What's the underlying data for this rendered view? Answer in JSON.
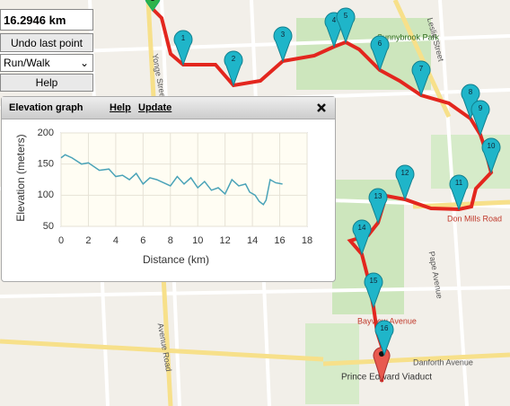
{
  "controls": {
    "distance": "16.2946 km",
    "undo": "Undo last point",
    "mode": "Run/Walk",
    "help": "Help"
  },
  "map": {
    "labels": [
      "Yonge Street",
      "Leslie Street",
      "Sunnybrook Park",
      "Don Mills Road",
      "Bayview Avenue",
      "Pape Avenue",
      "Danforth Avenue",
      "Prince Edward Viaduct",
      "Avenue Road"
    ],
    "markers": [
      "1",
      "2",
      "3",
      "4",
      "5",
      "6",
      "7",
      "8",
      "9",
      "10",
      "11",
      "12",
      "13",
      "14",
      "15",
      "16"
    ]
  },
  "panel": {
    "title": "Elevation graph",
    "help": "Help",
    "update": "Update"
  },
  "chart_data": {
    "type": "line",
    "xlabel": "Distance (km)",
    "ylabel": "Elevation (meters)",
    "color": "#4aa3b8",
    "x": [
      0,
      0.3,
      0.8,
      1.5,
      2,
      2.8,
      3.5,
      4,
      4.5,
      5,
      5.5,
      6,
      6.5,
      7,
      7.5,
      8,
      8.5,
      9,
      9.5,
      10,
      10.5,
      11,
      11.5,
      12,
      12.5,
      13,
      13.5,
      13.8,
      14.2,
      14.5,
      14.8,
      15,
      15.3,
      15.7,
      16.2
    ],
    "values": [
      160,
      165,
      160,
      150,
      152,
      140,
      142,
      130,
      132,
      125,
      135,
      118,
      128,
      125,
      120,
      115,
      130,
      118,
      128,
      112,
      122,
      108,
      112,
      102,
      125,
      115,
      118,
      105,
      100,
      90,
      85,
      92,
      125,
      120,
      118
    ],
    "xlim": [
      0,
      18
    ],
    "xticks": [
      0,
      2,
      4,
      6,
      8,
      10,
      12,
      14,
      16,
      18
    ],
    "ylim": [
      50,
      200
    ],
    "yticks": [
      50,
      100,
      150,
      200
    ],
    "grid": true
  }
}
